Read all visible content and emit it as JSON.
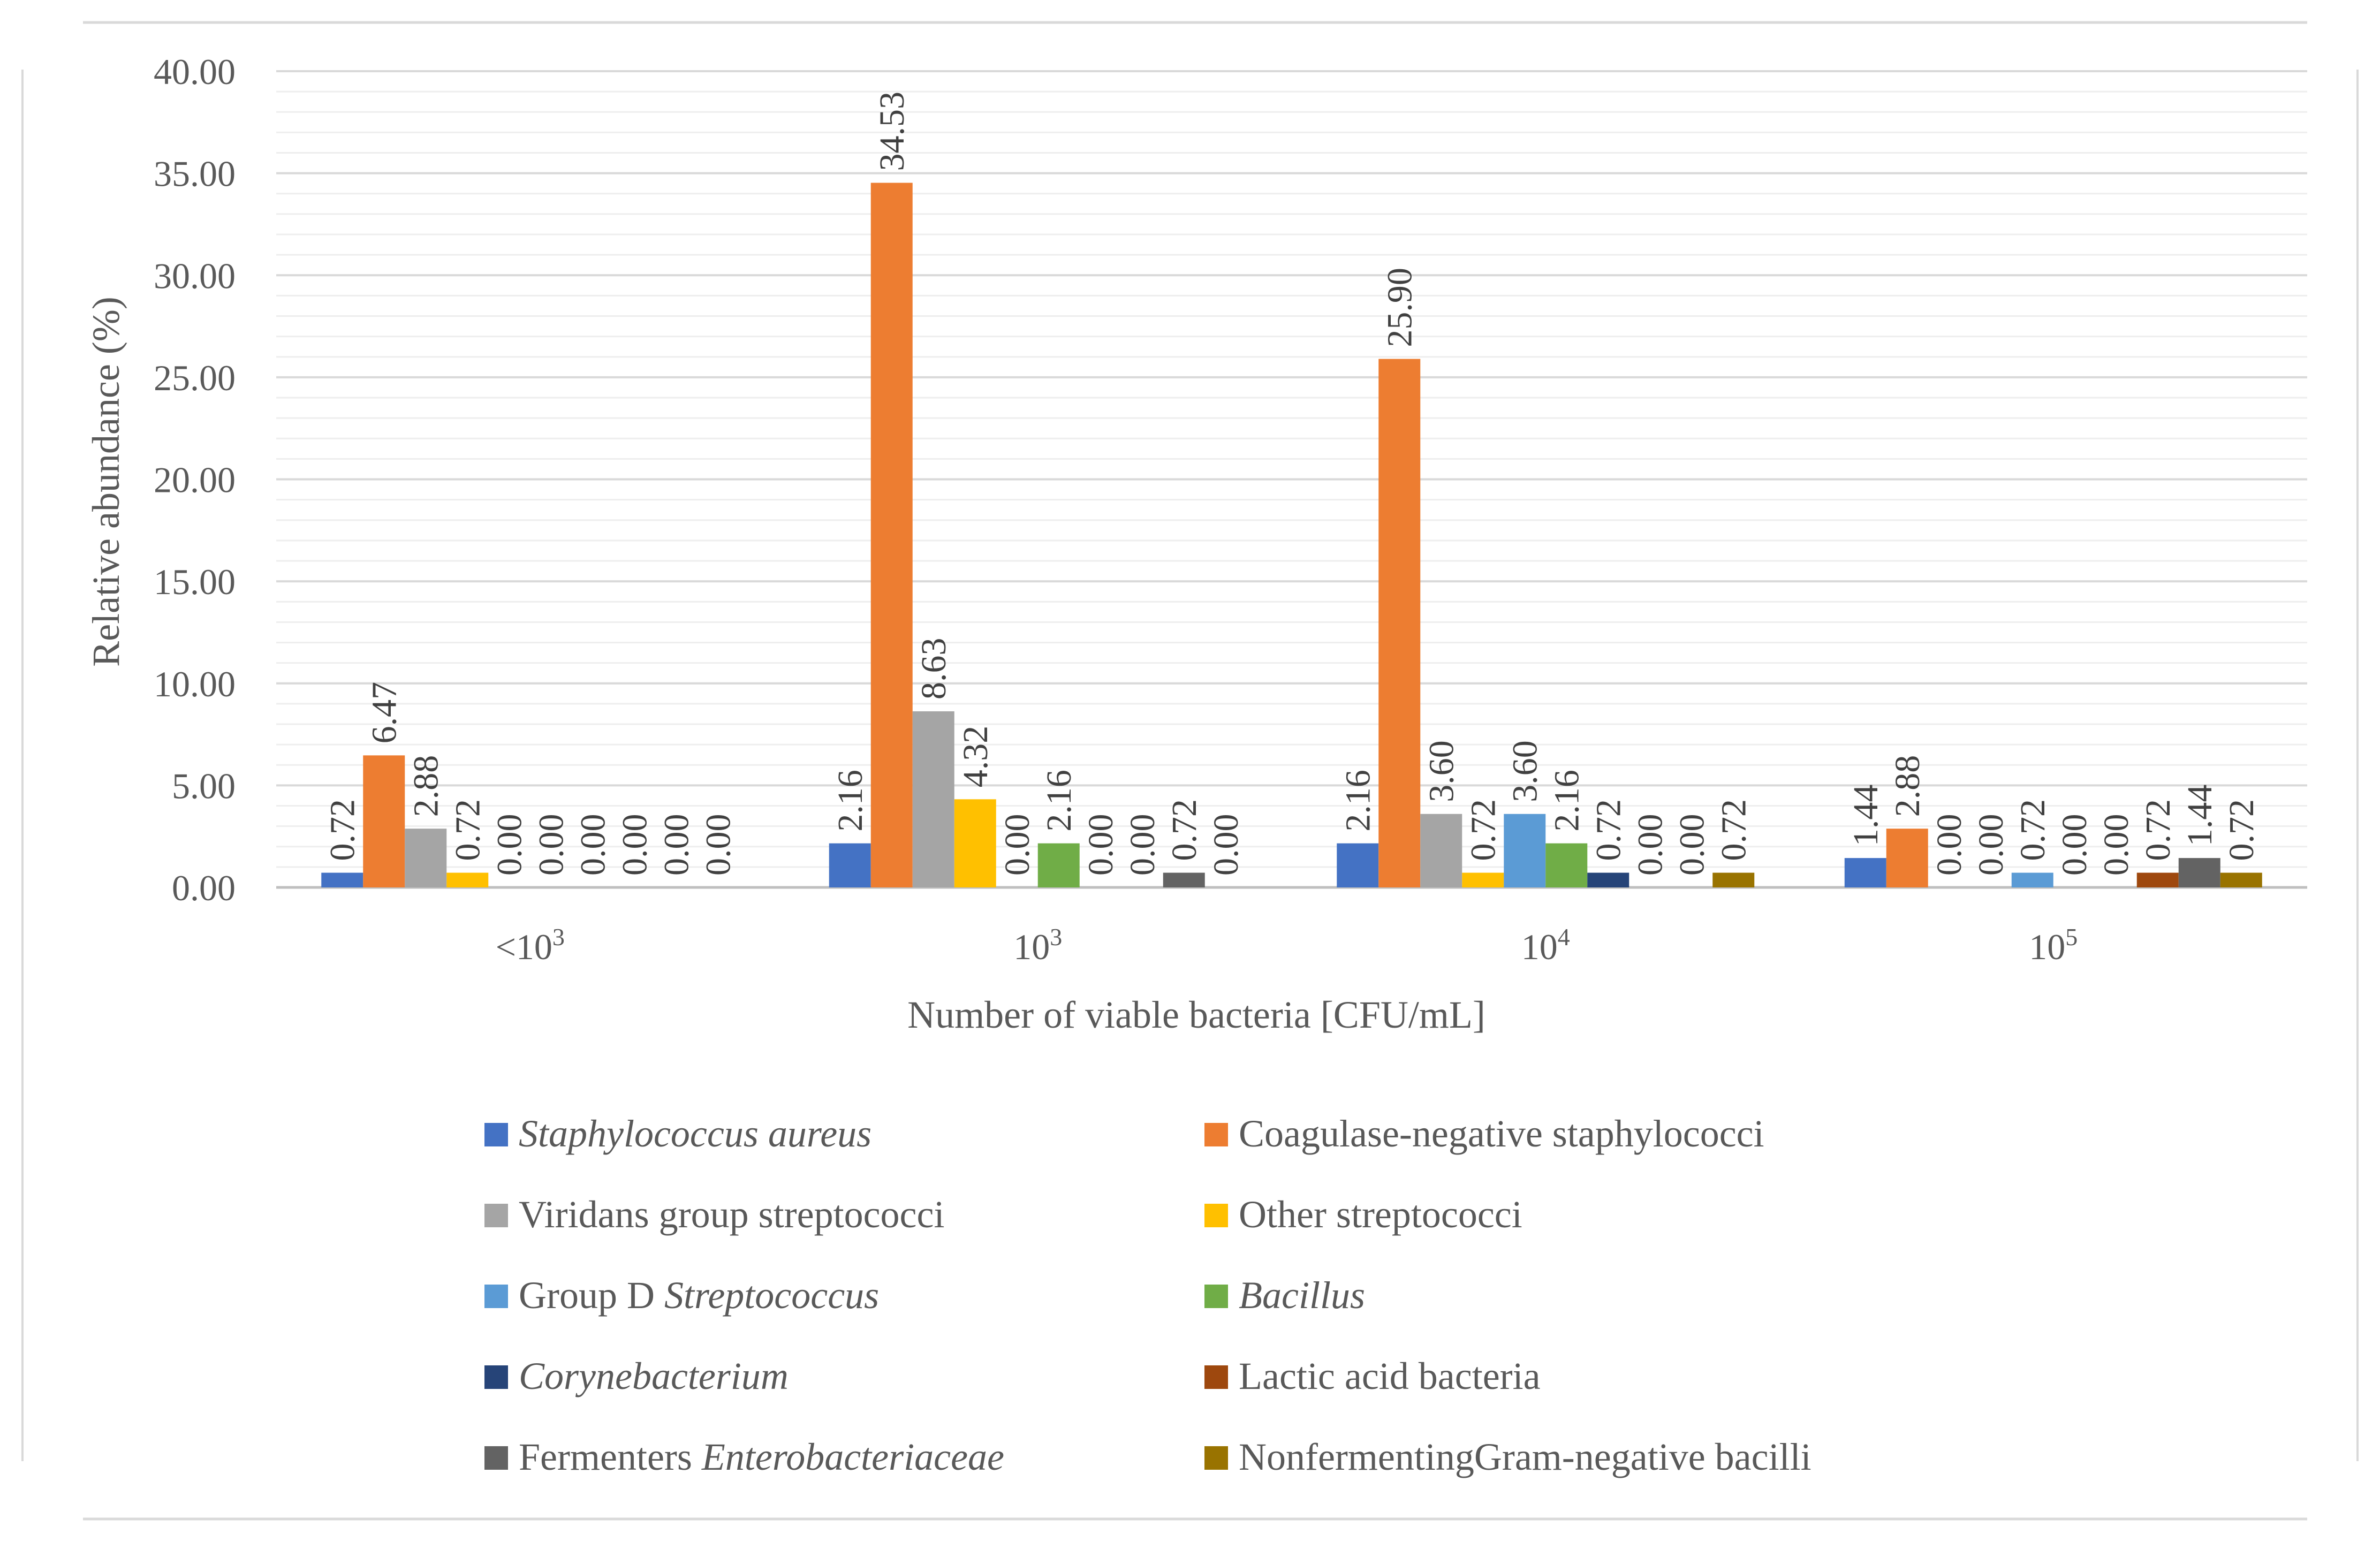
{
  "chart_data": {
    "type": "bar",
    "xlabel": "Number of viable bacteria [CFU/mL]",
    "ylabel": "Relative abundance (%)",
    "ylim": [
      0,
      40
    ],
    "yticks": [
      "0.00",
      "5.00",
      "10.00",
      "15.00",
      "20.00",
      "25.00",
      "30.00",
      "35.00",
      "40.00"
    ],
    "grid": true,
    "legend_position": "bottom",
    "categories": [
      {
        "base": "<10",
        "exp": "3"
      },
      {
        "base": "10",
        "exp": "3"
      },
      {
        "base": "10",
        "exp": "4"
      },
      {
        "base": "10",
        "exp": "5"
      }
    ],
    "series": [
      {
        "name": "Staphylococcus aureus",
        "italic": true,
        "color": "#4472C4",
        "values": [
          0.72,
          2.16,
          2.16,
          1.44
        ],
        "labels": [
          "0.72",
          "2.16",
          "2.16",
          "1.44"
        ]
      },
      {
        "name": "Coagulase-negative staphylococci",
        "italic": false,
        "color": "#ED7D31",
        "values": [
          6.47,
          34.53,
          25.9,
          2.88
        ],
        "labels": [
          "6.47",
          "34.53",
          "25.90",
          "2.88"
        ]
      },
      {
        "name": "Viridans group streptococci",
        "italic": false,
        "color": "#A5A5A5",
        "values": [
          2.88,
          8.63,
          3.6,
          0.0
        ],
        "labels": [
          "2.88",
          "8.63",
          "3.60",
          "0.00"
        ]
      },
      {
        "name": "Other streptococci",
        "italic": false,
        "color": "#FFC000",
        "values": [
          0.72,
          4.32,
          0.72,
          0.0
        ],
        "labels": [
          "0.72",
          "4.32",
          "0.72",
          "0.00"
        ]
      },
      {
        "name_parts": [
          {
            "text": "Group D ",
            "italic": false
          },
          {
            "text": "Streptococcus",
            "italic": true
          }
        ],
        "name": "Group D Streptococcus",
        "color": "#5B9BD5",
        "values": [
          0.0,
          0.0,
          3.6,
          0.72
        ],
        "labels": [
          "0.00",
          "0.00",
          "3.60",
          "0.72"
        ]
      },
      {
        "name": "Bacillus",
        "italic": true,
        "color": "#70AD47",
        "values": [
          0.0,
          2.16,
          2.16,
          0.0
        ],
        "labels": [
          "0.00",
          "2.16",
          "2.16",
          "0.00"
        ]
      },
      {
        "name": "Corynebacterium",
        "italic": true,
        "color": "#264478",
        "values": [
          0.0,
          0.0,
          0.72,
          0.0
        ],
        "labels": [
          "0.00",
          "0.00",
          "0.72",
          "0.00"
        ]
      },
      {
        "name": "Lactic acid bacteria",
        "italic": false,
        "color": "#9E480E",
        "values": [
          0.0,
          0.0,
          0.0,
          0.72
        ],
        "labels": [
          "0.00",
          "0.00",
          "0.00",
          "0.72"
        ]
      },
      {
        "name_parts": [
          {
            "text": "Fermenters ",
            "italic": false
          },
          {
            "text": "Enterobacteriaceae",
            "italic": true
          }
        ],
        "name": "Fermenters Enterobacteriaceae",
        "color": "#636363",
        "values": [
          0.0,
          0.72,
          0.0,
          1.44
        ],
        "labels": [
          "0.00",
          "0.72",
          "0.00",
          "1.44"
        ]
      },
      {
        "name": "NonfermentingGram-negative bacilli",
        "italic": false,
        "color": "#997300",
        "values": [
          0.0,
          0.0,
          0.72,
          0.72
        ],
        "labels": [
          "0.00",
          "0.00",
          "0.72",
          "0.72"
        ]
      }
    ]
  }
}
